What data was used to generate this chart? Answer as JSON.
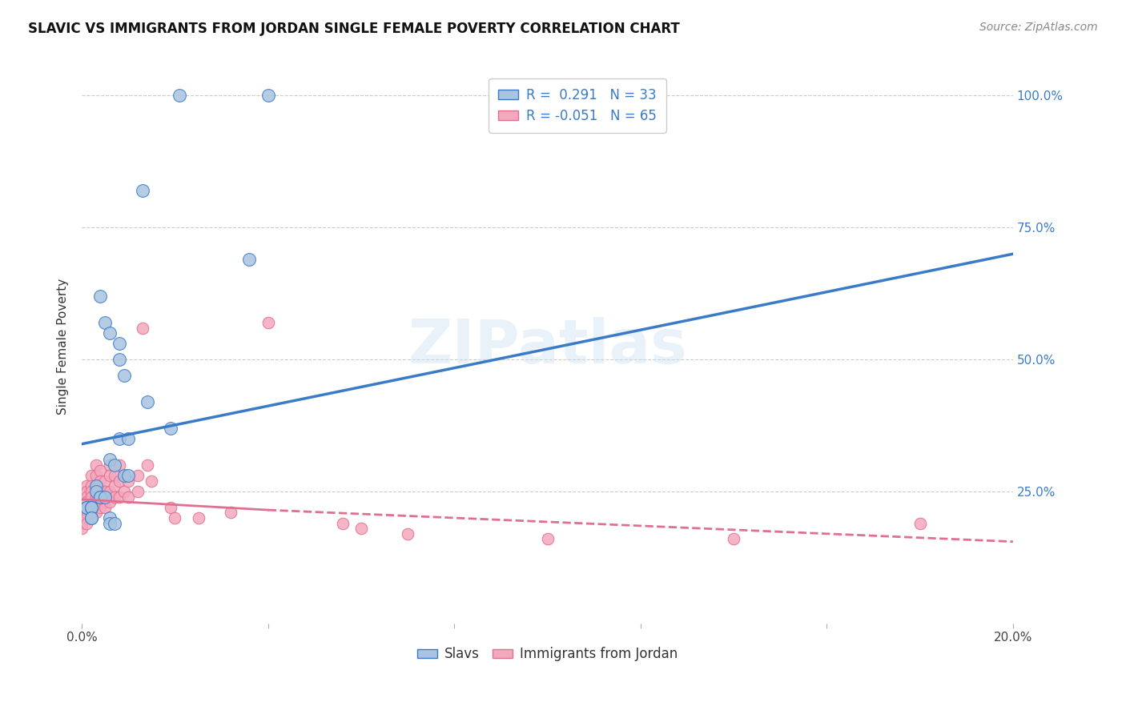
{
  "title": "SLAVIC VS IMMIGRANTS FROM JORDAN SINGLE FEMALE POVERTY CORRELATION CHART",
  "source": "Source: ZipAtlas.com",
  "ylabel": "Single Female Poverty",
  "x_min": 0.0,
  "x_max": 0.2,
  "y_min": 0.0,
  "y_max": 1.05,
  "y_ticks": [
    0.25,
    0.5,
    0.75,
    1.0
  ],
  "x_ticks": [
    0.0,
    0.04,
    0.08,
    0.12,
    0.16,
    0.2
  ],
  "x_tick_labels": [
    "0.0%",
    "",
    "",
    "",
    "",
    "20.0%"
  ],
  "y_tick_labels_right": [
    "25.0%",
    "50.0%",
    "75.0%",
    "100.0%"
  ],
  "legend_r_slavs": "0.291",
  "legend_n_slavs": "33",
  "legend_r_jordan": "-0.051",
  "legend_n_jordan": "65",
  "slavs_color": "#a8c4e0",
  "jordan_color": "#f4a8be",
  "trend_slavs_color": "#3a7bc8",
  "trend_jordan_color": "#e07090",
  "watermark": "ZIPatlas",
  "slavs_x": [
    0.021,
    0.04,
    0.013,
    0.036,
    0.004,
    0.005,
    0.006,
    0.008,
    0.008,
    0.009,
    0.014,
    0.019,
    0.008,
    0.01,
    0.006,
    0.007,
    0.009,
    0.01,
    0.003,
    0.003,
    0.004,
    0.004,
    0.005,
    0.001,
    0.001,
    0.002,
    0.002,
    0.002,
    0.002,
    0.002,
    0.006,
    0.006,
    0.007
  ],
  "slavs_y": [
    1.0,
    1.0,
    0.82,
    0.69,
    0.62,
    0.57,
    0.55,
    0.53,
    0.5,
    0.47,
    0.42,
    0.37,
    0.35,
    0.35,
    0.31,
    0.3,
    0.28,
    0.28,
    0.26,
    0.25,
    0.24,
    0.24,
    0.24,
    0.22,
    0.22,
    0.22,
    0.22,
    0.22,
    0.2,
    0.2,
    0.2,
    0.19,
    0.19
  ],
  "jordan_x": [
    0.0,
    0.0,
    0.0,
    0.0,
    0.0,
    0.0,
    0.001,
    0.001,
    0.001,
    0.001,
    0.001,
    0.001,
    0.001,
    0.001,
    0.002,
    0.002,
    0.002,
    0.002,
    0.002,
    0.002,
    0.003,
    0.003,
    0.003,
    0.003,
    0.003,
    0.003,
    0.004,
    0.004,
    0.004,
    0.004,
    0.004,
    0.005,
    0.005,
    0.005,
    0.005,
    0.006,
    0.006,
    0.006,
    0.006,
    0.007,
    0.007,
    0.007,
    0.008,
    0.008,
    0.008,
    0.009,
    0.009,
    0.01,
    0.01,
    0.012,
    0.012,
    0.013,
    0.014,
    0.015,
    0.019,
    0.02,
    0.025,
    0.032,
    0.04,
    0.056,
    0.06,
    0.07,
    0.1,
    0.14,
    0.18
  ],
  "jordan_y": [
    0.22,
    0.22,
    0.21,
    0.2,
    0.19,
    0.18,
    0.26,
    0.25,
    0.24,
    0.23,
    0.22,
    0.21,
    0.2,
    0.19,
    0.28,
    0.26,
    0.25,
    0.24,
    0.22,
    0.21,
    0.3,
    0.28,
    0.26,
    0.24,
    0.23,
    0.21,
    0.29,
    0.27,
    0.25,
    0.23,
    0.22,
    0.27,
    0.25,
    0.23,
    0.22,
    0.3,
    0.28,
    0.25,
    0.23,
    0.28,
    0.26,
    0.24,
    0.3,
    0.27,
    0.24,
    0.28,
    0.25,
    0.27,
    0.24,
    0.28,
    0.25,
    0.56,
    0.3,
    0.27,
    0.22,
    0.2,
    0.2,
    0.21,
    0.57,
    0.19,
    0.18,
    0.17,
    0.16,
    0.16,
    0.19
  ],
  "trend_slavs_x0": 0.0,
  "trend_slavs_x1": 0.2,
  "trend_slavs_y0": 0.34,
  "trend_slavs_y1": 0.7,
  "trend_jordan_solid_x0": 0.0,
  "trend_jordan_solid_x1": 0.04,
  "trend_jordan_solid_y0": 0.235,
  "trend_jordan_solid_y1": 0.215,
  "trend_jordan_dash_x0": 0.04,
  "trend_jordan_dash_x1": 0.2,
  "trend_jordan_dash_y0": 0.215,
  "trend_jordan_dash_y1": 0.155,
  "background_color": "#ffffff",
  "grid_color": "#cccccc"
}
